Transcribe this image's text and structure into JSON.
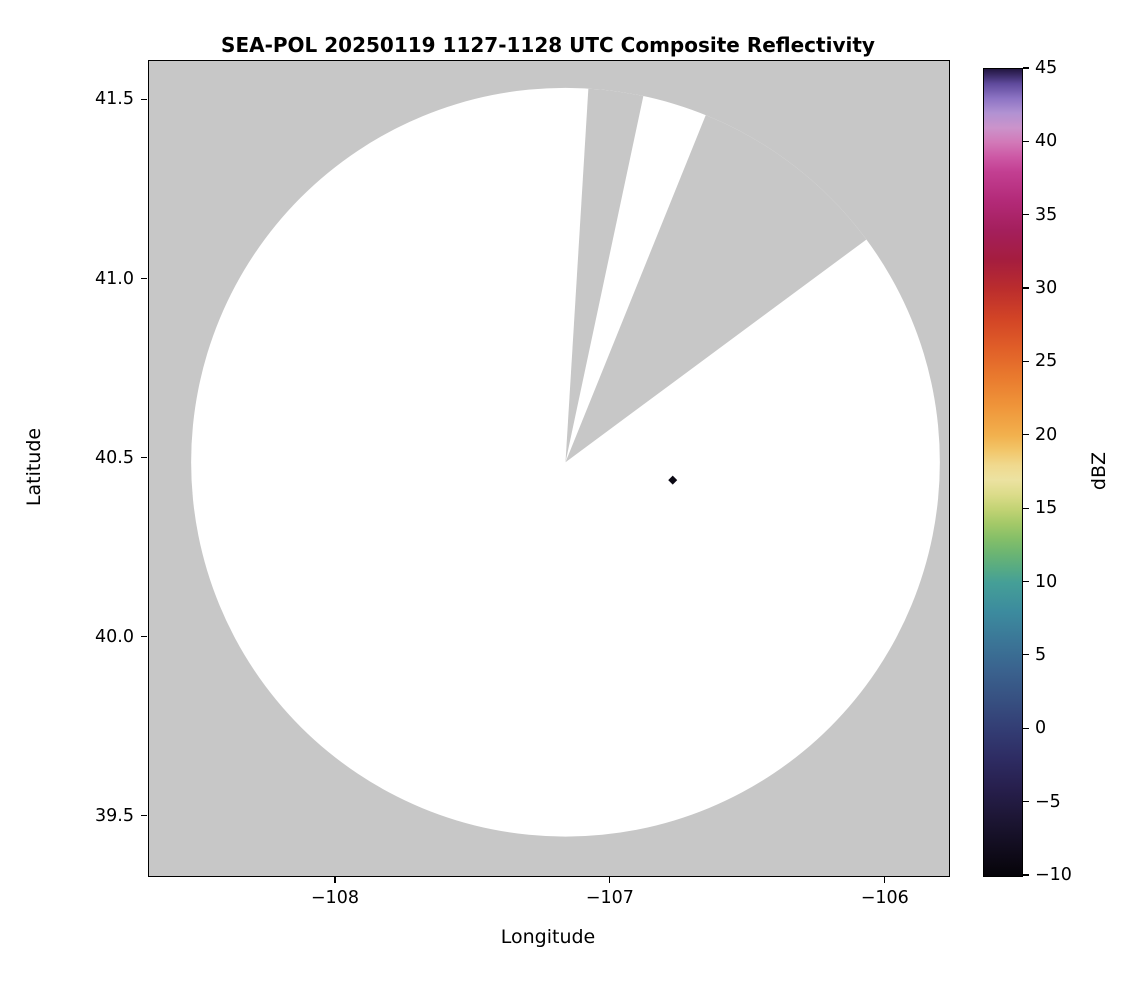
{
  "figure": {
    "background_color": "#ffffff"
  },
  "chart_data": {
    "type": "heatmap",
    "subtype": "radar-ppi-composite-reflectivity",
    "title": "SEA-POL 20250119 1127-1128 UTC Composite Reflectivity",
    "xlabel": "Longitude",
    "ylabel": "Latitude",
    "xlim": [
      -108.68,
      -105.77
    ],
    "ylim": [
      39.335,
      41.61
    ],
    "grid": false,
    "plot_bg_color": "#c7c7c7",
    "coverage_color": "#ffffff",
    "xticks": [
      {
        "value": -108,
        "label": "−108"
      },
      {
        "value": -107,
        "label": "−107"
      },
      {
        "value": -106,
        "label": "−106"
      }
    ],
    "yticks": [
      {
        "value": 41.5,
        "label": "41.5"
      },
      {
        "value": 41.0,
        "label": "41.0"
      },
      {
        "value": 40.5,
        "label": "40.5"
      },
      {
        "value": 40.0,
        "label": "40.0"
      },
      {
        "value": 39.5,
        "label": "39.5"
      }
    ],
    "radar": {
      "center_lon": -107.165,
      "center_lat": 40.49,
      "radius_deg_lat": 1.045,
      "blocked_sectors_azimuth_deg": [
        [
          3.5,
          12.0
        ],
        [
          22.0,
          53.5
        ]
      ]
    },
    "echoes": [
      {
        "lon": -106.775,
        "lat": 40.44,
        "value_dbz_estimate": -7,
        "color": "#0b0914",
        "marker": "diamond"
      }
    ],
    "colorbar": {
      "label": "dBZ",
      "min": -10,
      "max": 45,
      "position": "right",
      "ticks": [
        {
          "value": 45,
          "label": "45"
        },
        {
          "value": 40,
          "label": "40"
        },
        {
          "value": 35,
          "label": "35"
        },
        {
          "value": 30,
          "label": "30"
        },
        {
          "value": 25,
          "label": "25"
        },
        {
          "value": 20,
          "label": "20"
        },
        {
          "value": 15,
          "label": "15"
        },
        {
          "value": 10,
          "label": "10"
        },
        {
          "value": 5,
          "label": "5"
        },
        {
          "value": 0,
          "label": "0"
        },
        {
          "value": -5,
          "label": "−5"
        },
        {
          "value": -10,
          "label": "−10"
        }
      ],
      "stops": [
        {
          "v": -10,
          "c": "#060409"
        },
        {
          "v": -8,
          "c": "#120d1f"
        },
        {
          "v": -6,
          "c": "#1d1635"
        },
        {
          "v": -4,
          "c": "#271f4d"
        },
        {
          "v": -2,
          "c": "#2e2c63"
        },
        {
          "v": 0,
          "c": "#333d74"
        },
        {
          "v": 2,
          "c": "#375081"
        },
        {
          "v": 4,
          "c": "#3a628e"
        },
        {
          "v": 6,
          "c": "#3b7697"
        },
        {
          "v": 8,
          "c": "#3c8b9e"
        },
        {
          "v": 10,
          "c": "#459f97"
        },
        {
          "v": 11,
          "c": "#57ab83"
        },
        {
          "v": 12,
          "c": "#6cb572"
        },
        {
          "v": 13,
          "c": "#85bf68"
        },
        {
          "v": 14,
          "c": "#a3c968"
        },
        {
          "v": 15,
          "c": "#c2d374"
        },
        {
          "v": 16,
          "c": "#dcdc8a"
        },
        {
          "v": 17,
          "c": "#ece2a1"
        },
        {
          "v": 18,
          "c": "#f0d98e"
        },
        {
          "v": 19,
          "c": "#f2c66a"
        },
        {
          "v": 20,
          "c": "#f2b14e"
        },
        {
          "v": 22,
          "c": "#ef953a"
        },
        {
          "v": 24,
          "c": "#e97a2e"
        },
        {
          "v": 26,
          "c": "#e05e28"
        },
        {
          "v": 28,
          "c": "#d24426"
        },
        {
          "v": 30,
          "c": "#bb2d2d"
        },
        {
          "v": 32,
          "c": "#a51d3f"
        },
        {
          "v": 34,
          "c": "#a41f5c"
        },
        {
          "v": 36,
          "c": "#b32a78"
        },
        {
          "v": 38,
          "c": "#c33f92"
        },
        {
          "v": 39,
          "c": "#cd58a5"
        },
        {
          "v": 40,
          "c": "#d279b8"
        },
        {
          "v": 41,
          "c": "#cb93cb"
        },
        {
          "v": 42,
          "c": "#b192d2"
        },
        {
          "v": 43,
          "c": "#8d74c4"
        },
        {
          "v": 44,
          "c": "#5f4a9c"
        },
        {
          "v": 44.5,
          "c": "#3f2f6e"
        },
        {
          "v": 45,
          "c": "#221640"
        }
      ]
    }
  }
}
